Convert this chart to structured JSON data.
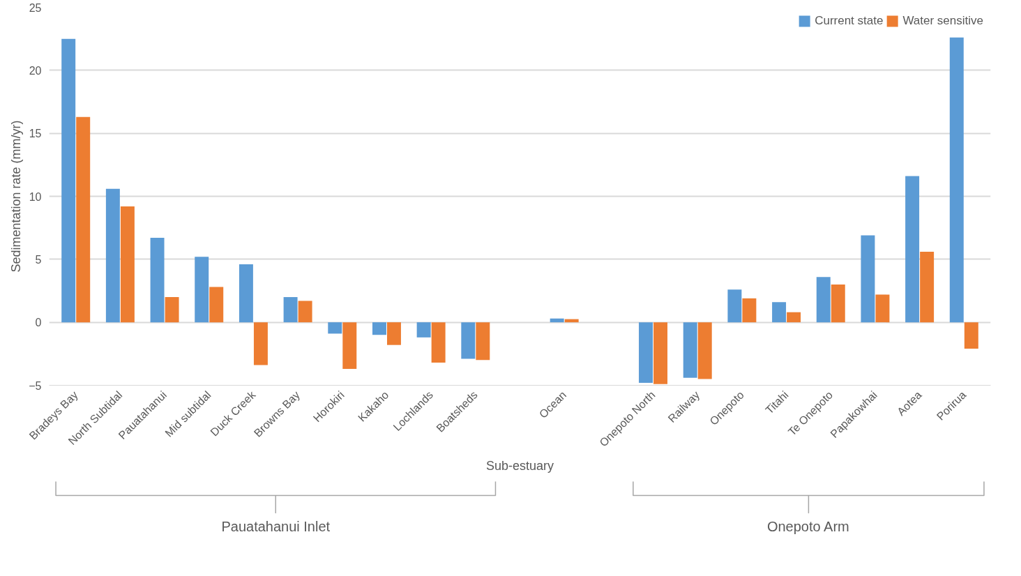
{
  "chart_data": {
    "type": "bar",
    "xlabel": "Sub-estuary",
    "ylabel": "Sedimentation rate (mm/yr)",
    "categories": [
      "Bradeys Bay",
      "North Subtidal",
      "Pauatahanui",
      "Mid subtidal",
      "Duck Creek",
      "Browns Bay",
      "Horokiri",
      "Kakaho",
      "Lochlands",
      "Boatsheds",
      null,
      "Ocean",
      null,
      "Onepoto North",
      "Railway",
      "Onepoto",
      "Titahi",
      "Te Onepoto",
      "Papakowhai",
      "Aotea",
      "Porirua"
    ],
    "series": [
      {
        "name": "Current state",
        "color": "#5b9bd5",
        "values": [
          22.5,
          10.6,
          6.7,
          5.2,
          4.6,
          2.0,
          -0.9,
          -1.0,
          -1.2,
          -2.9,
          null,
          0.3,
          null,
          -4.8,
          -4.4,
          2.6,
          1.6,
          3.6,
          6.9,
          11.6,
          22.6
        ]
      },
      {
        "name": "Water sensitive",
        "color": "#ed7d31",
        "values": [
          16.3,
          9.2,
          2.0,
          2.8,
          -3.4,
          1.7,
          -3.7,
          -1.8,
          -3.2,
          -3.0,
          null,
          0.25,
          null,
          -4.9,
          -4.5,
          1.9,
          0.8,
          3.0,
          2.2,
          5.6,
          -2.1
        ]
      }
    ],
    "ylim": [
      -5,
      25
    ],
    "yticks": [
      -5,
      0,
      5,
      10,
      15,
      20,
      25
    ],
    "grid": "y",
    "legend": "top right",
    "annotations": [
      "Pauatahanui Inlet",
      "Onepoto Arm"
    ]
  }
}
